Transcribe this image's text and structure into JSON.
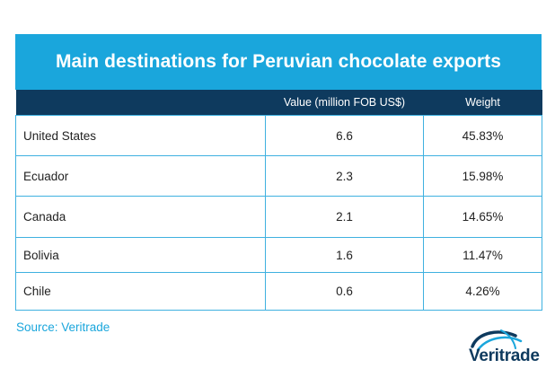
{
  "title": "Main destinations for Peruvian chocolate exports",
  "table": {
    "headers": [
      "",
      "Value (million FOB US$)",
      "Weight"
    ],
    "rows": [
      {
        "country": "United States",
        "value": "6.6",
        "weight": "45.83%"
      },
      {
        "country": "Ecuador",
        "value": "2.3",
        "weight": "15.98%"
      },
      {
        "country": "Canada",
        "value": "2.1",
        "weight": "14.65%"
      },
      {
        "country": "Bolivia",
        "value": "1.6",
        "weight": "11.47%"
      },
      {
        "country": "Chile",
        "value": "0.6",
        "weight": "4.26%"
      }
    ]
  },
  "source": "Source: Veritrade",
  "logo": {
    "text": "Veritrade",
    "icon": "veritrade-swoosh-icon"
  },
  "colors": {
    "accent": "#1aa6dc",
    "header": "#0e3a5e",
    "border": "#3fb1e0"
  }
}
